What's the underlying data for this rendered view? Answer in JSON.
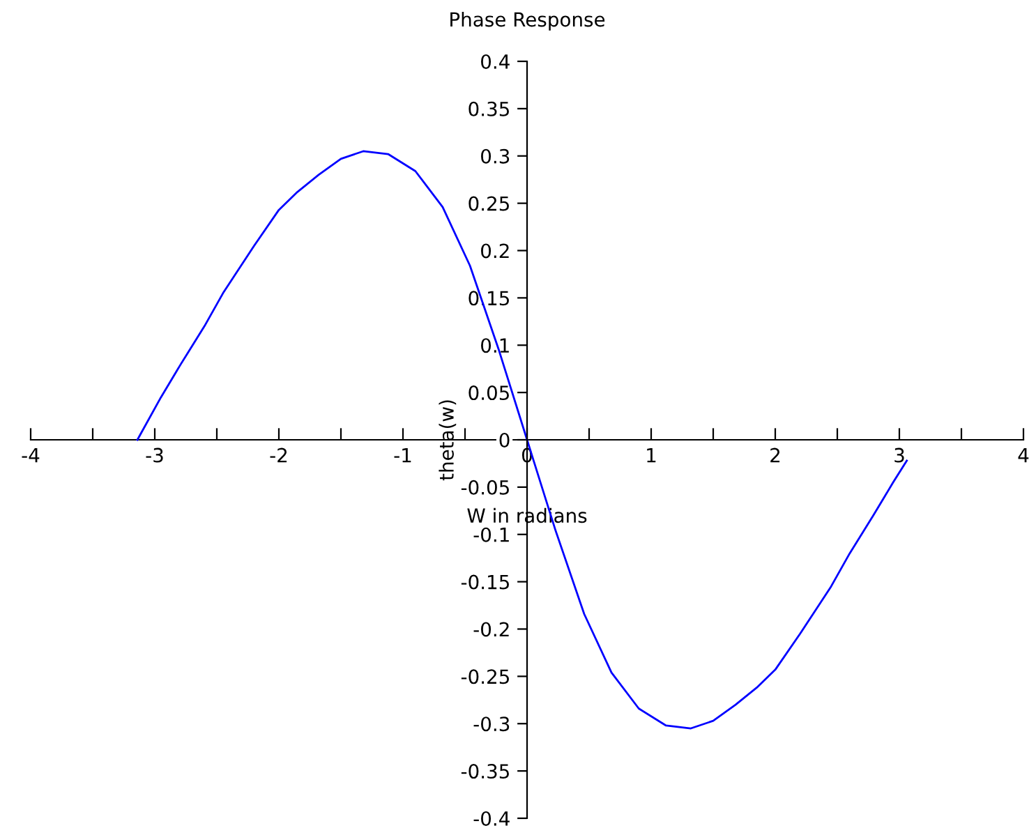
{
  "chart_data": {
    "type": "line",
    "title": "Phase Response",
    "xlabel": "W in radians",
    "ylabel": "theta(w)",
    "series": [
      {
        "color": "#0000ff",
        "x": [
          -3.14,
          -2.95,
          -2.79,
          -2.6,
          -2.45,
          -2.2,
          -2.0,
          -1.85,
          -1.68,
          -1.5,
          -1.32,
          -1.12,
          -0.9,
          -0.68,
          -0.46,
          -0.23,
          0,
          0.23,
          0.46,
          0.68,
          0.9,
          1.12,
          1.32,
          1.5,
          1.68,
          1.85,
          2.0,
          2.2,
          2.45,
          2.6,
          2.79,
          2.95,
          3.06
        ],
        "values": [
          0,
          0.045,
          0.08,
          0.12,
          0.155,
          0.205,
          0.243,
          0.262,
          0.28,
          0.297,
          0.305,
          0.302,
          0.284,
          0.246,
          0.184,
          0.096,
          0,
          -0.096,
          -0.184,
          -0.246,
          -0.284,
          -0.302,
          -0.305,
          -0.297,
          -0.28,
          -0.262,
          -0.243,
          -0.205,
          -0.155,
          -0.12,
          -0.08,
          -0.045,
          -0.022
        ]
      }
    ],
    "xlim": [
      -4,
      4
    ],
    "ylim": [
      -0.4,
      0.4
    ],
    "xticks": [
      -4,
      {
        "value": -3.5,
        "label": null
      },
      -3,
      {
        "value": -2.5,
        "label": null
      },
      -2,
      {
        "value": -1.5,
        "label": null
      },
      -1,
      {
        "value": -0.5,
        "label": null
      },
      0,
      {
        "value": 0.5,
        "label": null
      },
      1,
      {
        "value": 1.5,
        "label": null
      },
      2,
      {
        "value": 2.5,
        "label": null
      },
      3,
      {
        "value": 3.5,
        "label": null
      },
      4
    ],
    "yticks": [
      -0.4,
      -0.35,
      -0.3,
      -0.25,
      -0.2,
      -0.15,
      -0.1,
      -0.05,
      0,
      0.05,
      0.1,
      0.15,
      0.2,
      0.25,
      0.3,
      0.35,
      0.4
    ],
    "grid": false,
    "line_style": "solid",
    "marker": "none"
  }
}
